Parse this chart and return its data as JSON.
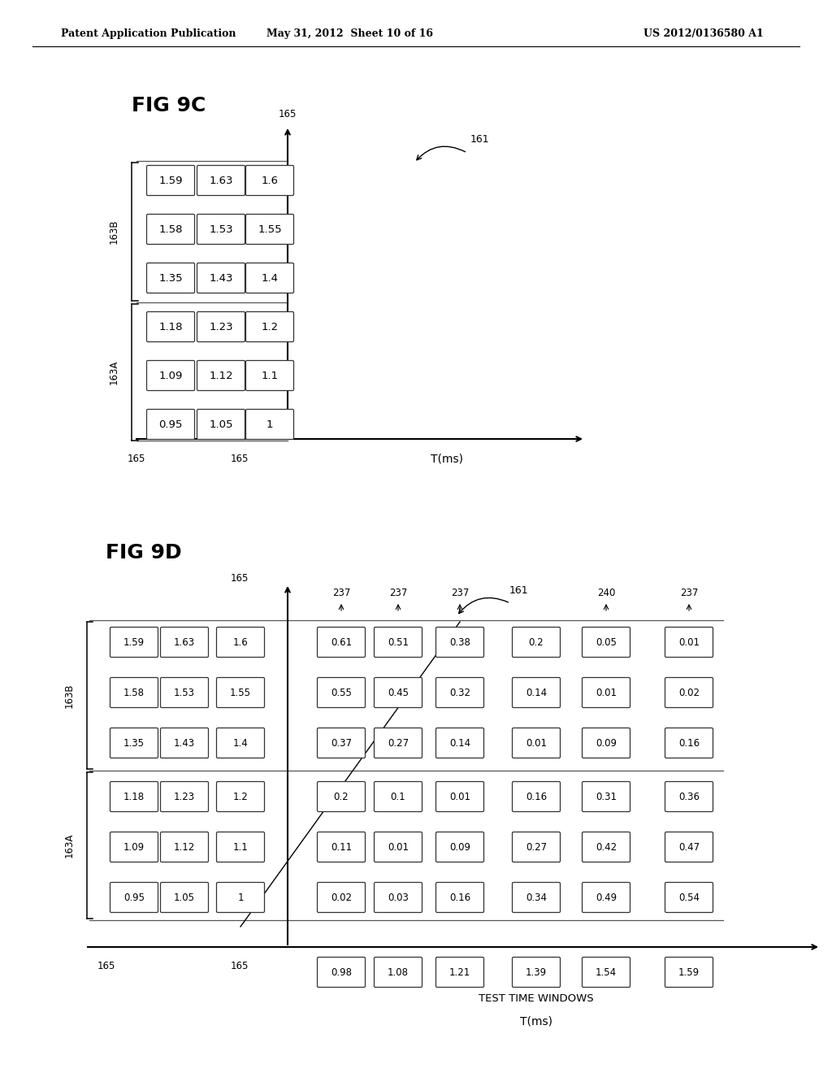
{
  "header_left": "Patent Application Publication",
  "header_mid": "May 31, 2012  Sheet 10 of 16",
  "header_right": "US 2012/0136580 A1",
  "fig9c_title": "FIG 9C",
  "fig9d_title": "FIG 9D",
  "fig9c_grid_B": [
    [
      "1.59",
      "1.63",
      "1.6"
    ],
    [
      "1.58",
      "1.53",
      "1.55"
    ],
    [
      "1.35",
      "1.43",
      "1.4"
    ]
  ],
  "fig9c_grid_A": [
    [
      "1.18",
      "1.23",
      "1.2"
    ],
    [
      "1.09",
      "1.12",
      "1.1"
    ],
    [
      "0.95",
      "1.05",
      "1"
    ]
  ],
  "fig9d_grid": [
    [
      "1.59",
      "1.63",
      "1.6",
      "0.61",
      "0.51",
      "0.38",
      "0.2",
      "0.05",
      "0.01"
    ],
    [
      "1.58",
      "1.53",
      "1.55",
      "0.55",
      "0.45",
      "0.32",
      "0.14",
      "0.01",
      "0.02"
    ],
    [
      "1.35",
      "1.43",
      "1.4",
      "0.37",
      "0.27",
      "0.14",
      "0.01",
      "0.09",
      "0.16"
    ],
    [
      "1.18",
      "1.23",
      "1.2",
      "0.2",
      "0.1",
      "0.01",
      "0.16",
      "0.31",
      "0.36"
    ],
    [
      "1.09",
      "1.12",
      "1.1",
      "0.11",
      "0.01",
      "0.09",
      "0.27",
      "0.42",
      "0.47"
    ],
    [
      "0.95",
      "1.05",
      "1",
      "0.02",
      "0.03",
      "0.16",
      "0.34",
      "0.49",
      "0.54"
    ]
  ],
  "fig9d_bottom": [
    "0.98",
    "1.08",
    "1.21",
    "1.39",
    "1.54",
    "1.59"
  ],
  "bg_color": "#ffffff"
}
